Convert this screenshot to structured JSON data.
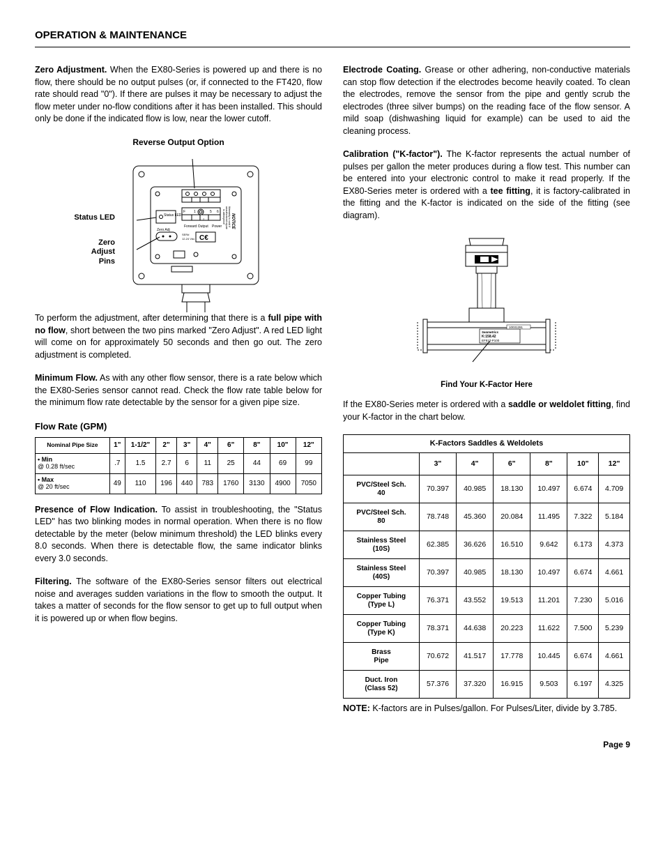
{
  "section_title": "OPERATION & MAINTENANCE",
  "page_number": "Page 9",
  "left": {
    "zero_adj_head": "Zero Adjustment.",
    "zero_adj_text": "  When the EX80-Series is powered up and there is no flow, there should be no output pulses (or, if connected to the FT420, flow rate should read \"0\").  If there are pulses it may be necessary to adjust the flow meter under no-flow conditions after it has been installed. This should only be done if the indicated flow is low, near the lower cutoff.",
    "reverse_title": "Reverse Output Option",
    "status_led_label": "Status LED",
    "zero_pins_label": "Zero Adjust Pins",
    "diag_status_led": "Status LED",
    "diag_zero_adj": "Zero Adj",
    "diag_forward": "Forward Output",
    "diag_power": "Power",
    "diag_notice": "NOTICE",
    "diag_warning": "Warranty is void if unauthorized repair is attempted!",
    "perform_text_a": "To perform the adjustment, after determining that there is a ",
    "perform_text_bold": "full pipe with no flow",
    "perform_text_b": ", short between the two pins marked \"Zero Adjust\".  A red LED light will come on for approximately 50 seconds and then go out.  The zero adjustment is completed.",
    "min_flow_head": "Minimum Flow.",
    "min_flow_text": "  As with any other flow sensor, there is a rate below which the EX80-Series sensor cannot read. Check the flow rate table below for the minimum flow rate detectable by the sensor for a given pipe size.",
    "flow_title": "Flow Rate (GPM)",
    "flow_table": {
      "header_lbl": "Nominal Pipe Size",
      "sizes": [
        "1\"",
        "1-1/2\"",
        "2\"",
        "3\"",
        "4\"",
        "6\"",
        "8\"",
        "10\"",
        "12\""
      ],
      "rows": [
        {
          "label": "• Min @ 0.28 ft/sec",
          "values": [
            ".7",
            "1.5",
            "2.7",
            "6",
            "11",
            "25",
            "44",
            "69",
            "99"
          ]
        },
        {
          "label": "• Max @ 20 ft/sec",
          "values": [
            "49",
            "110",
            "196",
            "440",
            "783",
            "1760",
            "3130",
            "4900",
            "7050"
          ]
        }
      ]
    },
    "presence_head": "Presence of Flow Indication.",
    "presence_text": "  To assist in troubleshooting, the \"Status LED\" has two blinking modes in normal operation. When there is no flow detectable by the meter (below minimum threshold) the LED blinks every 8.0 seconds. When there is detectable flow, the same indicator blinks every 3.0 seconds.",
    "filter_head": "Filtering.",
    "filter_text": "  The software of the EX80-Series sensor filters out electrical noise and averages sudden variations in the flow to smooth the output. It takes a matter of seconds for the flow sensor to get up to full output when it is powered up or when flow begins."
  },
  "right": {
    "electrode_head": "Electrode Coating.",
    "electrode_text": "  Grease or other adhering, non-conductive materials can stop flow detection if the electrodes become heavily coated. To clean the electrodes, remove the sensor from the pipe and gently scrub the electrodes (three silver bumps) on the reading face of the flow sensor. A mild soap (dishwashing liquid for example) can be used to aid the cleaning process.",
    "calib_head": "Calibration (\"K-factor\").",
    "calib_text_a": "   The K-factor represents the actual number of pulses per gallon the meter produces during a flow test.  This number can be entered into your electronic control to make it read properly.  If the EX80-Series meter is ordered with a ",
    "calib_bold1": "tee fitting",
    "calib_text_b": ", it is factory-calibrated in the fitting and the K-factor is indicated on the side of the fitting (see diagram).",
    "diag_seametrics": "Seametrics",
    "diag_k": "K:158.42",
    "diag_part": "EF81T-P100",
    "diag_serial": "10031291",
    "find_k": "Find Your K-Factor Here",
    "saddle_text_a": "If the EX80-Series meter is ordered with a ",
    "saddle_bold": "saddle or weldolet fitting",
    "saddle_text_b": ", find your K-factor in the chart below.",
    "kf_table": {
      "title": "K-Factors Saddles & Weldolets",
      "sizes": [
        "3\"",
        "4\"",
        "6\"",
        "8\"",
        "10\"",
        "12\""
      ],
      "rows": [
        {
          "label": "PVC/Steel Sch. 40",
          "values": [
            "70.397",
            "40.985",
            "18.130",
            "10.497",
            "6.674",
            "4.709"
          ]
        },
        {
          "label": "PVC/Steel Sch. 80",
          "values": [
            "78.748",
            "45.360",
            "20.084",
            "11.495",
            "7.322",
            "5.184"
          ]
        },
        {
          "label": "Stainless Steel (10S)",
          "values": [
            "62.385",
            "36.626",
            "16.510",
            "9.642",
            "6.173",
            "4.373"
          ]
        },
        {
          "label": "Stainless Steel (40S)",
          "values": [
            "70.397",
            "40.985",
            "18.130",
            "10.497",
            "6.674",
            "4.661"
          ]
        },
        {
          "label": "Copper Tubing (Type L)",
          "values": [
            "76.371",
            "43.552",
            "19.513",
            "11.201",
            "7.230",
            "5.016"
          ]
        },
        {
          "label": "Copper Tubing (Type K)",
          "values": [
            "78.371",
            "44.638",
            "20.223",
            "11.622",
            "7.500",
            "5.239"
          ]
        },
        {
          "label": "Brass Pipe",
          "values": [
            "70.672",
            "41.517",
            "17.778",
            "10.445",
            "6.674",
            "4.661"
          ]
        },
        {
          "label": "Duct. Iron (Class 52)",
          "values": [
            "57.376",
            "37.320",
            "16.915",
            "9.503",
            "6.197",
            "4.325"
          ]
        }
      ]
    },
    "note_head": "NOTE:",
    "note_text": " K-factors are in Pulses/gallon. For Pulses/Liter, divide by 3.785."
  }
}
